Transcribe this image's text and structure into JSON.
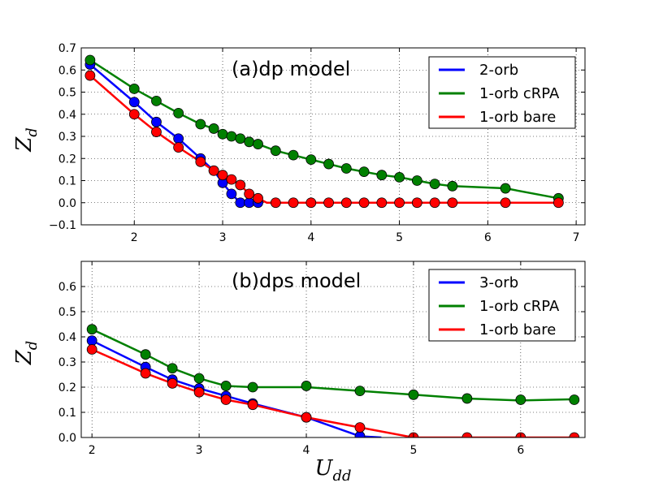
{
  "chart_data": [
    {
      "type": "line",
      "title": "(a)dp model",
      "xlabel": "",
      "ylabel": "Z_d",
      "xlim": [
        1.4,
        7.1
      ],
      "ylim": [
        -0.1,
        0.7
      ],
      "xticks": [
        "2",
        "3",
        "4",
        "5",
        "6",
        "7"
      ],
      "xtick_values": [
        2,
        3,
        4,
        5,
        6,
        7
      ],
      "yticks": [
        "−0.1",
        "0.0",
        "0.1",
        "0.2",
        "0.3",
        "0.4",
        "0.5",
        "0.6",
        "0.7"
      ],
      "ytick_values": [
        -0.1,
        0.0,
        0.1,
        0.2,
        0.3,
        0.4,
        0.5,
        0.6,
        0.7
      ],
      "grid": true,
      "legend_position": "top-right",
      "series": [
        {
          "name": "2-orb",
          "color": "#0000ff",
          "points": [
            [
              1.5,
              0.625
            ],
            [
              2.0,
              0.455
            ],
            [
              2.25,
              0.365
            ],
            [
              2.5,
              0.29
            ],
            [
              2.75,
              0.2
            ],
            [
              2.9,
              0.145
            ],
            [
              3.0,
              0.09
            ],
            [
              3.1,
              0.04
            ],
            [
              3.2,
              0.0
            ],
            [
              3.3,
              0.0
            ],
            [
              3.4,
              0.0
            ]
          ],
          "curve": [
            [
              1.5,
              0.625
            ],
            [
              2.0,
              0.455
            ],
            [
              2.25,
              0.365
            ],
            [
              2.5,
              0.29
            ],
            [
              2.75,
              0.2
            ],
            [
              2.9,
              0.145
            ],
            [
              3.0,
              0.09
            ],
            [
              3.1,
              0.04
            ],
            [
              3.2,
              0.0
            ],
            [
              3.4,
              0.0
            ]
          ]
        },
        {
          "name": "1-orb cRPA",
          "color": "#008000",
          "points": [
            [
              1.5,
              0.645
            ],
            [
              2.0,
              0.515
            ],
            [
              2.25,
              0.46
            ],
            [
              2.5,
              0.405
            ],
            [
              2.75,
              0.355
            ],
            [
              2.9,
              0.335
            ],
            [
              3.0,
              0.31
            ],
            [
              3.1,
              0.3
            ],
            [
              3.2,
              0.29
            ],
            [
              3.3,
              0.275
            ],
            [
              3.4,
              0.265
            ],
            [
              3.6,
              0.235
            ],
            [
              3.8,
              0.215
            ],
            [
              4.0,
              0.195
            ],
            [
              4.2,
              0.175
            ],
            [
              4.4,
              0.155
            ],
            [
              4.6,
              0.14
            ],
            [
              4.8,
              0.125
            ],
            [
              5.0,
              0.115
            ],
            [
              5.2,
              0.1
            ],
            [
              5.4,
              0.085
            ],
            [
              5.6,
              0.075
            ],
            [
              6.2,
              0.065
            ],
            [
              6.8,
              0.02
            ]
          ],
          "curve": [
            [
              1.5,
              0.645
            ],
            [
              2.0,
              0.515
            ],
            [
              2.25,
              0.46
            ],
            [
              2.5,
              0.405
            ],
            [
              2.75,
              0.355
            ],
            [
              2.9,
              0.335
            ],
            [
              3.0,
              0.31
            ],
            [
              3.1,
              0.3
            ],
            [
              3.2,
              0.29
            ],
            [
              3.3,
              0.275
            ],
            [
              3.4,
              0.265
            ],
            [
              3.6,
              0.235
            ],
            [
              3.8,
              0.215
            ],
            [
              4.0,
              0.195
            ],
            [
              4.2,
              0.175
            ],
            [
              4.4,
              0.155
            ],
            [
              4.6,
              0.14
            ],
            [
              4.8,
              0.125
            ],
            [
              5.0,
              0.115
            ],
            [
              5.2,
              0.1
            ],
            [
              5.4,
              0.085
            ],
            [
              5.6,
              0.075
            ],
            [
              6.2,
              0.065
            ],
            [
              6.8,
              0.02
            ]
          ]
        },
        {
          "name": "1-orb bare",
          "color": "#ff0000",
          "points": [
            [
              1.5,
              0.575
            ],
            [
              2.0,
              0.4
            ],
            [
              2.25,
              0.32
            ],
            [
              2.5,
              0.25
            ],
            [
              2.75,
              0.185
            ],
            [
              2.9,
              0.145
            ],
            [
              3.0,
              0.125
            ],
            [
              3.1,
              0.105
            ],
            [
              3.2,
              0.08
            ],
            [
              3.3,
              0.04
            ],
            [
              3.4,
              0.02
            ],
            [
              3.6,
              0.0
            ],
            [
              3.8,
              0.0
            ],
            [
              4.0,
              0.0
            ],
            [
              4.2,
              0.0
            ],
            [
              4.4,
              0.0
            ],
            [
              4.6,
              0.0
            ],
            [
              4.8,
              0.0
            ],
            [
              5.0,
              0.0
            ],
            [
              5.2,
              0.0
            ],
            [
              5.4,
              0.0
            ],
            [
              5.6,
              0.0
            ],
            [
              6.2,
              0.0
            ],
            [
              6.8,
              0.0
            ]
          ],
          "curve": [
            [
              1.5,
              0.575
            ],
            [
              2.0,
              0.4
            ],
            [
              2.25,
              0.32
            ],
            [
              2.5,
              0.25
            ],
            [
              2.75,
              0.185
            ],
            [
              2.9,
              0.145
            ],
            [
              3.0,
              0.125
            ],
            [
              3.1,
              0.105
            ],
            [
              3.2,
              0.08
            ],
            [
              3.3,
              0.04
            ],
            [
              3.4,
              0.02
            ],
            [
              3.5,
              0.0
            ],
            [
              6.8,
              0.0
            ]
          ]
        }
      ]
    },
    {
      "type": "line",
      "title": "(b)dps model",
      "xlabel": "U_dd",
      "ylabel": "Z_d",
      "xlim": [
        1.9,
        6.6
      ],
      "ylim": [
        0.0,
        0.7
      ],
      "xticks": [
        "2",
        "3",
        "4",
        "5",
        "6"
      ],
      "xtick_values": [
        2,
        3,
        4,
        5,
        6
      ],
      "yticks": [
        "0.0",
        "0.1",
        "0.2",
        "0.3",
        "0.4",
        "0.5",
        "0.6"
      ],
      "ytick_values": [
        0.0,
        0.1,
        0.2,
        0.3,
        0.4,
        0.5,
        0.6
      ],
      "grid": true,
      "legend_position": "top-right",
      "series": [
        {
          "name": "3-orb",
          "color": "#0000ff",
          "points": [
            [
              2.0,
              0.385
            ],
            [
              2.5,
              0.28
            ],
            [
              2.75,
              0.23
            ],
            [
              3.0,
              0.195
            ],
            [
              3.25,
              0.165
            ],
            [
              3.5,
              0.135
            ],
            [
              4.0,
              0.08
            ],
            [
              4.5,
              0.005
            ]
          ],
          "curve": [
            [
              2.0,
              0.385
            ],
            [
              2.5,
              0.28
            ],
            [
              2.75,
              0.23
            ],
            [
              3.0,
              0.195
            ],
            [
              3.25,
              0.165
            ],
            [
              3.5,
              0.135
            ],
            [
              4.0,
              0.08
            ],
            [
              4.5,
              0.005
            ],
            [
              4.7,
              0.0
            ]
          ]
        },
        {
          "name": "1-orb cRPA",
          "color": "#008000",
          "points": [
            [
              2.0,
              0.43
            ],
            [
              2.5,
              0.33
            ],
            [
              2.75,
              0.275
            ],
            [
              3.0,
              0.235
            ],
            [
              3.25,
              0.205
            ],
            [
              3.5,
              0.2
            ],
            [
              4.0,
              0.205
            ],
            [
              4.5,
              0.185
            ],
            [
              5.0,
              0.17
            ],
            [
              5.5,
              0.155
            ],
            [
              6.0,
              0.15
            ],
            [
              6.5,
              0.15
            ]
          ],
          "curve": [
            [
              2.0,
              0.43
            ],
            [
              2.5,
              0.33
            ],
            [
              2.75,
              0.275
            ],
            [
              3.0,
              0.235
            ],
            [
              3.25,
              0.205
            ],
            [
              3.5,
              0.2
            ],
            [
              4.0,
              0.2
            ],
            [
              4.5,
              0.185
            ],
            [
              5.0,
              0.17
            ],
            [
              5.5,
              0.155
            ],
            [
              6.0,
              0.147
            ],
            [
              6.5,
              0.152
            ]
          ]
        },
        {
          "name": "1-orb bare",
          "color": "#ff0000",
          "points": [
            [
              2.0,
              0.35
            ],
            [
              2.5,
              0.255
            ],
            [
              2.75,
              0.215
            ],
            [
              3.0,
              0.18
            ],
            [
              3.25,
              0.15
            ],
            [
              3.5,
              0.13
            ],
            [
              4.0,
              0.08
            ],
            [
              4.5,
              0.04
            ],
            [
              5.0,
              0.0
            ],
            [
              5.5,
              0.0
            ],
            [
              6.0,
              0.0
            ],
            [
              6.5,
              0.0
            ]
          ],
          "curve": [
            [
              2.0,
              0.35
            ],
            [
              2.5,
              0.255
            ],
            [
              2.75,
              0.215
            ],
            [
              3.0,
              0.18
            ],
            [
              3.25,
              0.15
            ],
            [
              3.5,
              0.13
            ],
            [
              4.0,
              0.08
            ],
            [
              4.5,
              0.04
            ],
            [
              5.0,
              0.0
            ],
            [
              6.5,
              0.0
            ]
          ]
        }
      ]
    }
  ]
}
